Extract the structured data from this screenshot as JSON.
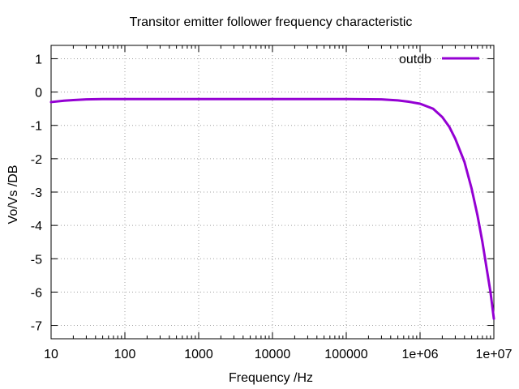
{
  "chart_data": {
    "type": "line",
    "title": "Transitor emitter follower frequency characteristic",
    "xlabel": "Frequency /Hz",
    "ylabel": "Vo/Vs /DB",
    "x_scale": "log",
    "xlim": [
      10,
      10000000
    ],
    "ylim": [
      -7.4,
      1.4
    ],
    "grid": true,
    "legend": "top-right",
    "x_ticks": [
      {
        "value": 10,
        "label": "10"
      },
      {
        "value": 100,
        "label": "100"
      },
      {
        "value": 1000,
        "label": "1000"
      },
      {
        "value": 10000,
        "label": "10000"
      },
      {
        "value": 100000,
        "label": "100000"
      },
      {
        "value": 1000000,
        "label": "1e+06"
      },
      {
        "value": 10000000,
        "label": "1e+07"
      }
    ],
    "y_ticks": [
      {
        "value": 1,
        "label": "1"
      },
      {
        "value": 0,
        "label": "0"
      },
      {
        "value": -1,
        "label": "-1"
      },
      {
        "value": -2,
        "label": "-2"
      },
      {
        "value": -3,
        "label": "-3"
      },
      {
        "value": -4,
        "label": "-4"
      },
      {
        "value": -5,
        "label": "-5"
      },
      {
        "value": -6,
        "label": "-6"
      },
      {
        "value": -7,
        "label": "-7"
      }
    ],
    "series": [
      {
        "name": "outdb",
        "color": "#9400d3",
        "x": [
          10,
          15,
          20,
          30,
          50,
          100,
          1000,
          10000,
          100000,
          300000,
          500000,
          700000,
          1000000,
          1500000,
          2000000,
          2500000,
          3000000,
          4000000,
          5000000,
          6000000,
          7000000,
          8000000,
          9000000,
          10000000
        ],
        "y": [
          -0.3,
          -0.26,
          -0.24,
          -0.22,
          -0.21,
          -0.21,
          -0.21,
          -0.21,
          -0.21,
          -0.22,
          -0.25,
          -0.29,
          -0.35,
          -0.5,
          -0.75,
          -1.05,
          -1.4,
          -2.1,
          -2.9,
          -3.7,
          -4.5,
          -5.3,
          -6.0,
          -6.8
        ]
      }
    ]
  }
}
